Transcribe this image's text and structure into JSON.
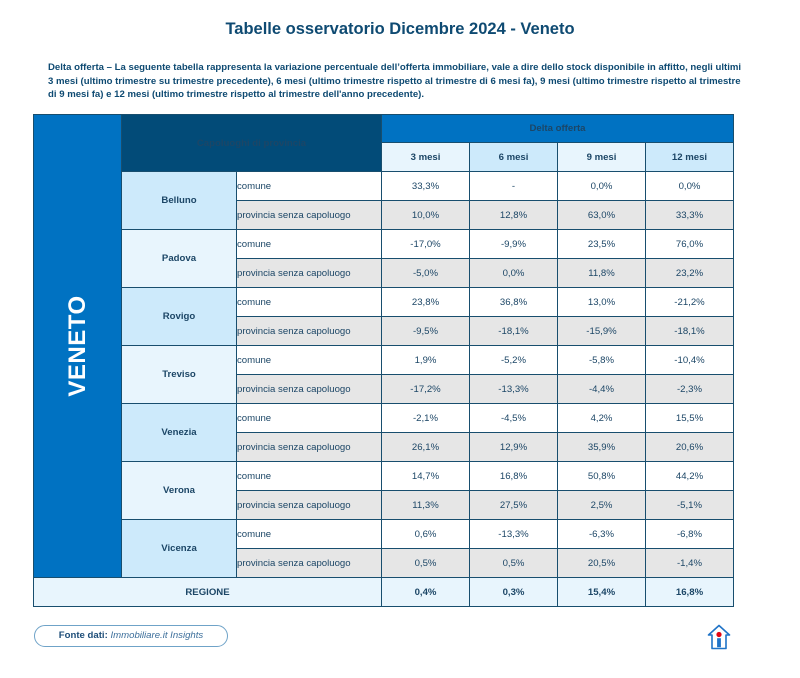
{
  "header": {
    "title": "Tabelle osservatorio Dicembre 2024 - Veneto",
    "description": "Delta offerta – La seguente tabella rappresenta la variazione percentuale dell’offerta immobiliare, vale a dire dello stock disponibile in affitto, negli ultimi 3 mesi (ultimo trimestre su trimestre precedente), 6 mesi (ultimo trimestre rispetto al trimestre di 6 mesi fa), 9 mesi (ultimo trimestre rispetto al trimestre di 9 mesi fa) e 12 mesi (ultimo trimestre rispetto al trimestre dell'anno precedente)."
  },
  "table": {
    "region": "VENETO",
    "capoluoghi_header": "Capoluoghi di provincia",
    "delta_header": "Delta offerta",
    "periods": [
      "3 mesi",
      "6 mesi",
      "9 mesi",
      "12 mesi"
    ],
    "rows": [
      {
        "city": "Belluno",
        "comune_label": "comune",
        "provincia_label": "provincia senza capoluogo",
        "comune": [
          "33,3%",
          "-",
          "0,0%",
          "0,0%"
        ],
        "provincia": [
          "10,0%",
          "12,8%",
          "63,0%",
          "33,3%"
        ]
      },
      {
        "city": "Padova",
        "comune_label": "comune",
        "provincia_label": "provincia senza capoluogo",
        "comune": [
          "-17,0%",
          "-9,9%",
          "23,5%",
          "76,0%"
        ],
        "provincia": [
          "-5,0%",
          "0,0%",
          "11,8%",
          "23,2%"
        ]
      },
      {
        "city": "Rovigo",
        "comune_label": "comune",
        "provincia_label": "provincia senza capoluogo",
        "comune": [
          "23,8%",
          "36,8%",
          "13,0%",
          "-21,2%"
        ],
        "provincia": [
          "-9,5%",
          "-18,1%",
          "-15,9%",
          "-18,1%"
        ]
      },
      {
        "city": "Treviso",
        "comune_label": "comune",
        "provincia_label": "provincia senza capoluogo",
        "comune": [
          "1,9%",
          "-5,2%",
          "-5,8%",
          "-10,4%"
        ],
        "provincia": [
          "-17,2%",
          "-13,3%",
          "-4,4%",
          "-2,3%"
        ]
      },
      {
        "city": "Venezia",
        "comune_label": "comune",
        "provincia_label": "provincia senza capoluogo",
        "comune": [
          "-2,1%",
          "-4,5%",
          "4,2%",
          "15,5%"
        ],
        "provincia": [
          "26,1%",
          "12,9%",
          "35,9%",
          "20,6%"
        ]
      },
      {
        "city": "Verona",
        "comune_label": "comune",
        "provincia_label": "provincia senza capoluogo",
        "comune": [
          "14,7%",
          "16,8%",
          "50,8%",
          "44,2%"
        ],
        "provincia": [
          "11,3%",
          "27,5%",
          "2,5%",
          "-5,1%"
        ]
      },
      {
        "city": "Vicenza",
        "comune_label": "comune",
        "provincia_label": "provincia senza capoluogo",
        "comune": [
          "0,6%",
          "-13,3%",
          "-6,3%",
          "-6,8%"
        ],
        "provincia": [
          "0,5%",
          "0,5%",
          "20,5%",
          "-1,4%"
        ]
      }
    ],
    "total": {
      "label": "REGIONE",
      "values": [
        "0,4%",
        "0,3%",
        "15,4%",
        "16,8%"
      ]
    }
  },
  "footer": {
    "source_label": "Fonte dati:",
    "source_value": "Immobiliare.it Insights",
    "logo_icon": "immobiliare-house-logo-icon"
  },
  "colors": {
    "navy": "#024b78",
    "blue": "#0072c2",
    "light_blue": "#e8f5fd",
    "mid_blue": "#cdeafb",
    "gray_row": "#e6e6e6",
    "logo_red": "#e30613"
  }
}
